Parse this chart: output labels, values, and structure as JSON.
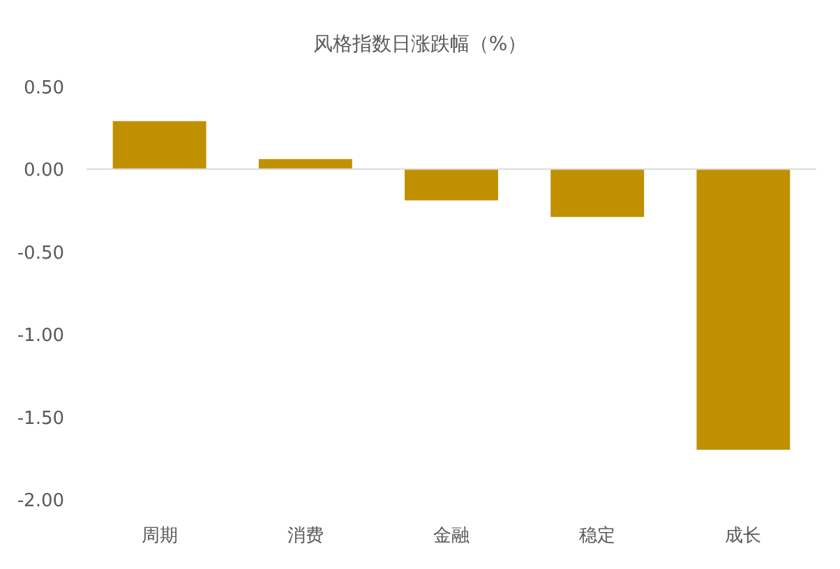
{
  "chart_data": {
    "type": "bar",
    "title": "风格指数日涨跌幅（%）",
    "categories": [
      "周期",
      "消费",
      "金融",
      "稳定",
      "成长"
    ],
    "values": [
      0.29,
      0.06,
      -0.19,
      -0.29,
      -1.7
    ],
    "color": "#c09000",
    "ylim": [
      -2,
      0.5
    ],
    "yticks": [
      {
        "value": 0.5,
        "label": "0.50"
      },
      {
        "value": 0,
        "label": "0.00"
      },
      {
        "value": -0.5,
        "label": "-0.50"
      },
      {
        "value": -1,
        "label": "-1.00"
      },
      {
        "value": -1.5,
        "label": "-1.50"
      },
      {
        "value": -2,
        "label": "-2.00"
      }
    ],
    "grid": false,
    "ref_lines": [
      {
        "axis": "y",
        "value": 0,
        "color": "#d9d9d9"
      }
    ]
  }
}
